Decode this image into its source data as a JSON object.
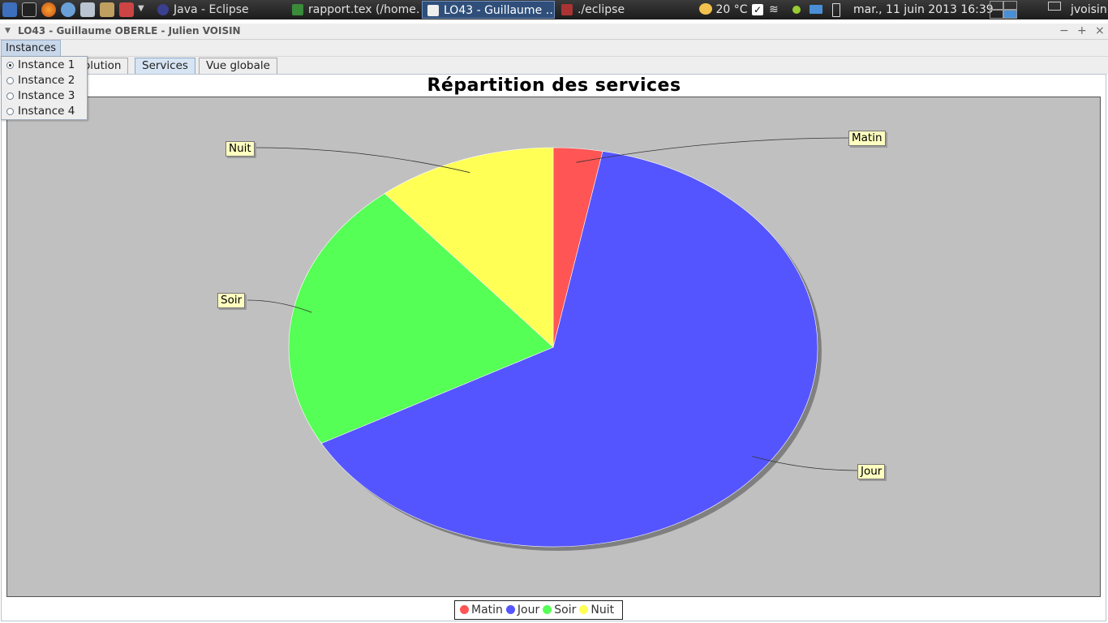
{
  "taskbar": {
    "tasks": [
      "Java - Eclipse",
      "rapport.tex (/home…",
      "LO43 - Guillaume …",
      "./eclipse"
    ],
    "weather": "20 °C",
    "datetime": "mar., 11 juin 2013 16:39",
    "user": "jvoisin"
  },
  "window": {
    "title": "LO43 - Guillaume OBERLE - Julien VOISIN",
    "minimize": "−",
    "maximize": "+",
    "close": "×"
  },
  "menu": {
    "instances_label": "Instances",
    "items": [
      "Instance 1",
      "Instance 2",
      "Instance 3",
      "Instance 4"
    ],
    "selected_index": 0
  },
  "tabs": {
    "evolution_visible": "olution",
    "services": "Services",
    "global": "Vue globale",
    "selected": "Services"
  },
  "chart_data": {
    "type": "pie",
    "title": "Répartition des services",
    "categories": [
      "Matin",
      "Jour",
      "Soir",
      "Nuit"
    ],
    "values": [
      3,
      64,
      22,
      11
    ],
    "colors": [
      "#ff5555",
      "#5555ff",
      "#55ff55",
      "#ffff55"
    ],
    "legend": "bottom",
    "background": "#c0c0c0"
  }
}
